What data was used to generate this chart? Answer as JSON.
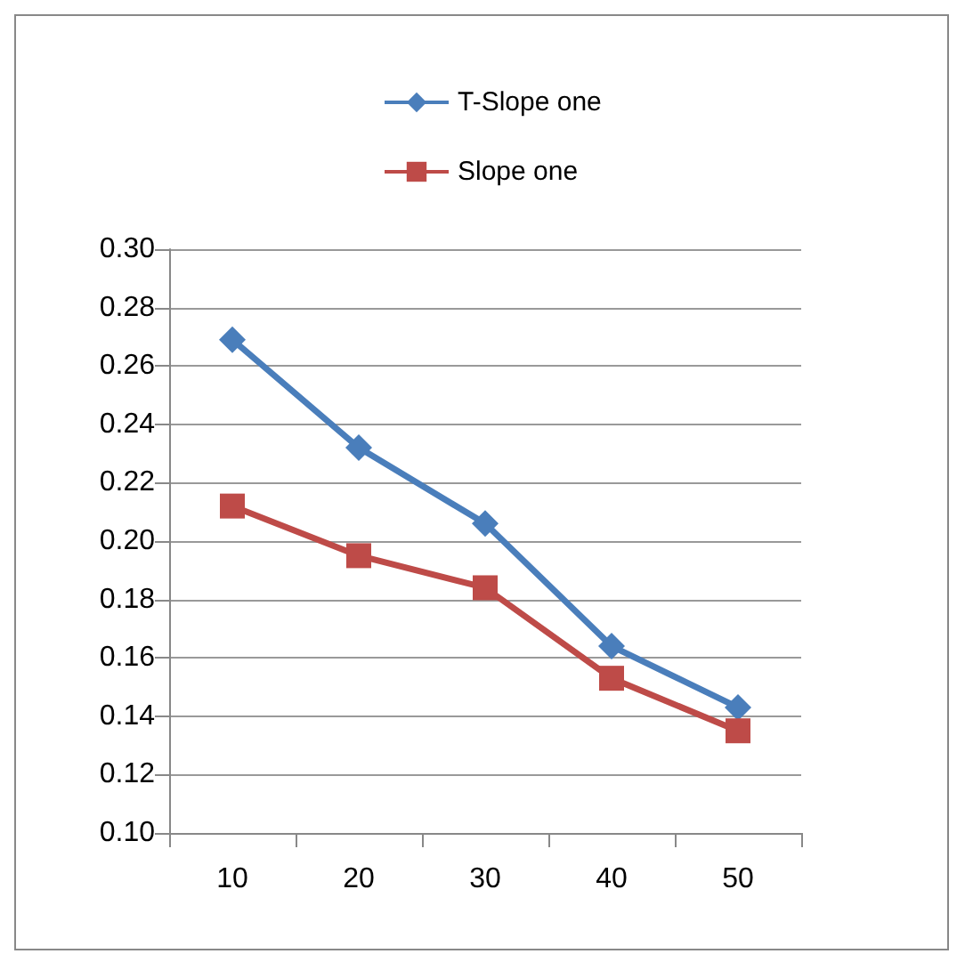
{
  "chart_data": {
    "type": "line",
    "categories": [
      "10",
      "20",
      "30",
      "40",
      "50"
    ],
    "series": [
      {
        "name": "T-Slope one",
        "color": "#4a7ebb",
        "marker": "diamond",
        "values": [
          0.269,
          0.232,
          0.206,
          0.164,
          0.143
        ]
      },
      {
        "name": "Slope one",
        "color": "#be4b48",
        "marker": "square",
        "values": [
          0.212,
          0.195,
          0.184,
          0.153,
          0.135
        ]
      }
    ],
    "ylim": [
      0.1,
      0.3
    ],
    "yticks": [
      {
        "value": 0.1,
        "label": "0.10"
      },
      {
        "value": 0.12,
        "label": "0.12"
      },
      {
        "value": 0.14,
        "label": "0.14"
      },
      {
        "value": 0.16,
        "label": "0.16"
      },
      {
        "value": 0.18,
        "label": "0.18"
      },
      {
        "value": 0.2,
        "label": "0.20"
      },
      {
        "value": 0.22,
        "label": "0.22"
      },
      {
        "value": 0.24,
        "label": "0.24"
      },
      {
        "value": 0.26,
        "label": "0.26"
      },
      {
        "value": 0.28,
        "label": "0.28"
      },
      {
        "value": 0.3,
        "label": "0.30"
      }
    ],
    "grid": "y",
    "legend": "top"
  }
}
